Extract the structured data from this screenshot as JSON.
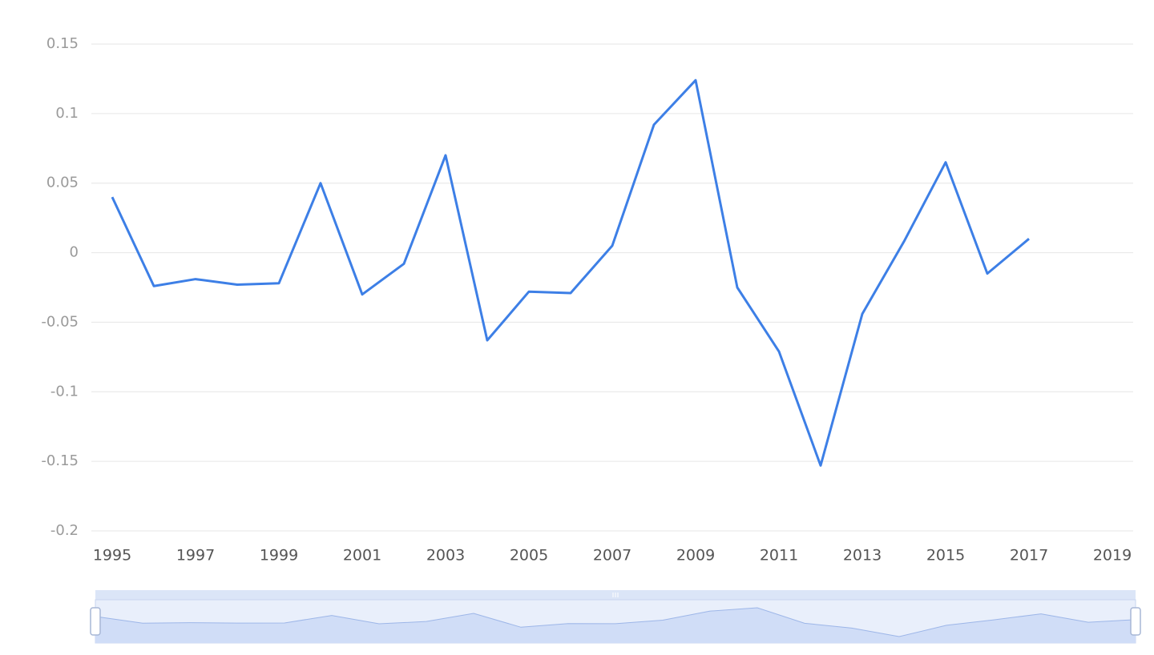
{
  "chart_data": {
    "type": "line",
    "categories": [
      "1995",
      null,
      "1997",
      null,
      "1999",
      null,
      "2001",
      null,
      "2003",
      null,
      "2005",
      null,
      "2007",
      null,
      "2009",
      null,
      "2011",
      null,
      "2013",
      null,
      "2015",
      null,
      "2017",
      null,
      "2019"
    ],
    "values": [
      0.04,
      -0.024,
      -0.019,
      -0.023,
      -0.022,
      0.05,
      -0.03,
      -0.008,
      0.07,
      -0.063,
      -0.028,
      -0.029,
      0.005,
      0.092,
      0.124,
      -0.025,
      -0.071,
      -0.153,
      -0.044,
      0.008,
      0.065,
      -0.015,
      0.01,
      null,
      null
    ],
    "color": "#3d7fe6",
    "ylim": [
      -0.2,
      0.15
    ],
    "yticks": [
      0.15,
      0.1,
      0.05,
      0,
      -0.05,
      -0.1,
      -0.15,
      -0.2
    ],
    "grid": true
  }
}
